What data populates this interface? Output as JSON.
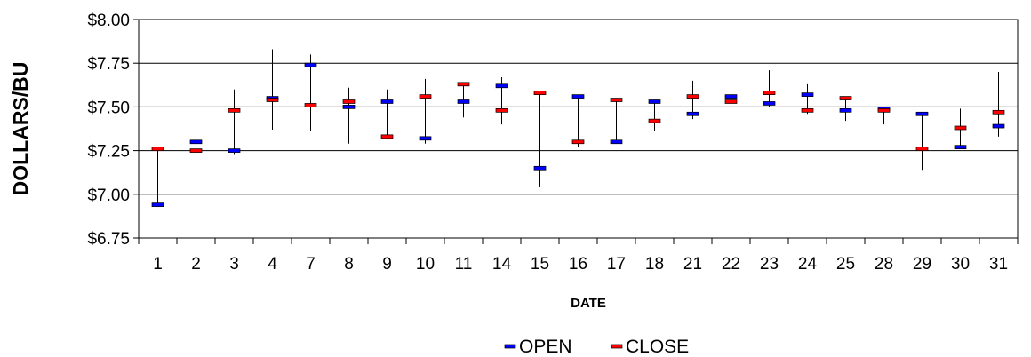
{
  "chart_data": {
    "type": "high-low-open-close",
    "title": "",
    "xlabel": "DATE",
    "ylabel": "DOLLARS/BU",
    "categories": [
      "1",
      "2",
      "3",
      "4",
      "7",
      "8",
      "9",
      "10",
      "11",
      "14",
      "15",
      "16",
      "17",
      "18",
      "21",
      "22",
      "23",
      "24",
      "25",
      "28",
      "29",
      "30",
      "31"
    ],
    "ylim": [
      6.75,
      8.0
    ],
    "yticks": [
      "$6.75",
      "$7.00",
      "$7.25",
      "$7.50",
      "$7.75",
      "$8.00"
    ],
    "ytick_values": [
      6.75,
      7.0,
      7.25,
      7.5,
      7.75,
      8.0
    ],
    "series": [
      {
        "name": "OPEN",
        "color": "#0000ff",
        "values": [
          6.94,
          7.3,
          7.25,
          7.55,
          7.74,
          7.5,
          7.53,
          7.32,
          7.53,
          7.62,
          7.15,
          7.56,
          7.3,
          7.53,
          7.46,
          7.56,
          7.52,
          7.57,
          7.48,
          7.49,
          7.46,
          7.27,
          7.39
        ]
      },
      {
        "name": "CLOSE",
        "color": "#ff0000",
        "values": [
          7.26,
          7.25,
          7.48,
          7.54,
          7.51,
          7.53,
          7.33,
          7.56,
          7.63,
          7.48,
          7.58,
          7.3,
          7.54,
          7.42,
          7.56,
          7.53,
          7.58,
          7.48,
          7.55,
          7.48,
          7.26,
          7.38,
          7.47
        ]
      }
    ],
    "high": [
      7.26,
      7.48,
      7.6,
      7.83,
      7.8,
      7.61,
      7.6,
      7.66,
      7.63,
      7.67,
      7.58,
      7.56,
      7.54,
      7.53,
      7.65,
      7.61,
      7.71,
      7.63,
      7.55,
      7.5,
      7.46,
      7.49,
      7.7
    ],
    "low": [
      6.94,
      7.12,
      7.23,
      7.37,
      7.36,
      7.29,
      7.33,
      7.29,
      7.44,
      7.4,
      7.04,
      7.27,
      7.3,
      7.36,
      7.43,
      7.44,
      7.5,
      7.46,
      7.42,
      7.4,
      7.14,
      7.27,
      7.33
    ],
    "grid": true,
    "legend_position": "bottom-center"
  }
}
